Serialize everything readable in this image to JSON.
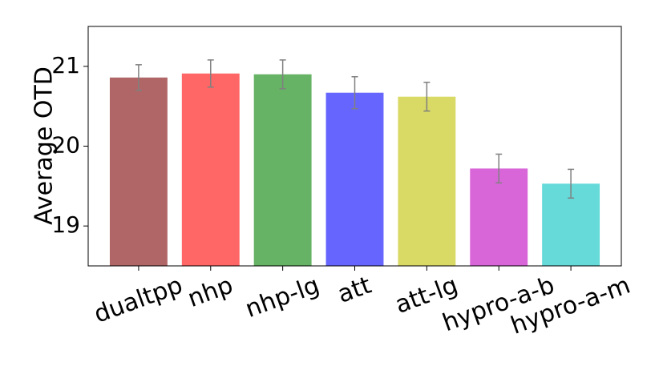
{
  "chart_data": {
    "type": "bar",
    "y_label": "Average OTD",
    "categories": [
      "dualtpp",
      "nhp",
      "nhp-lg",
      "att",
      "att-lg",
      "hypro-a-b",
      "hypro-a-m"
    ],
    "values": [
      20.86,
      20.91,
      20.9,
      20.67,
      20.62,
      19.72,
      19.53
    ],
    "errors": [
      0.16,
      0.17,
      0.18,
      0.2,
      0.18,
      0.18,
      0.18
    ],
    "colors": [
      "#b06666",
      "#ff6666",
      "#66b366",
      "#6666ff",
      "#d9d966",
      "#d966d9",
      "#66d9d9"
    ],
    "error_color": "#808080",
    "ylim": [
      18.5,
      21.5
    ],
    "yticks": [
      19,
      20,
      21
    ],
    "grid": false
  }
}
